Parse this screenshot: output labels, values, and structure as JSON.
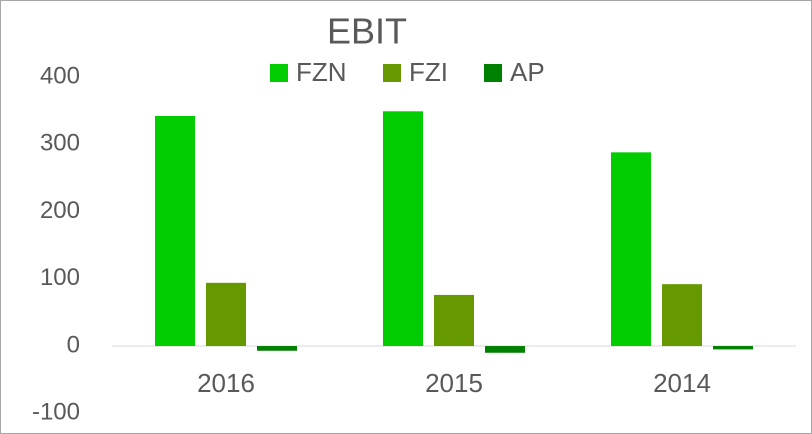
{
  "chart_data": {
    "type": "bar",
    "title": "EBIT",
    "categories": [
      "2016",
      "2015",
      "2014"
    ],
    "series": [
      {
        "name": "FZN",
        "color": "#00cc00",
        "values": [
          342,
          349,
          288
        ]
      },
      {
        "name": "FZI",
        "color": "#669900",
        "values": [
          94,
          76,
          92
        ]
      },
      {
        "name": "AP",
        "color": "#008000",
        "values": [
          -7,
          -10,
          -5
        ]
      }
    ],
    "ylim": [
      -100,
      400
    ],
    "yticks": [
      -100,
      0,
      100,
      200,
      300,
      400
    ],
    "grid": false,
    "legend": "top"
  }
}
